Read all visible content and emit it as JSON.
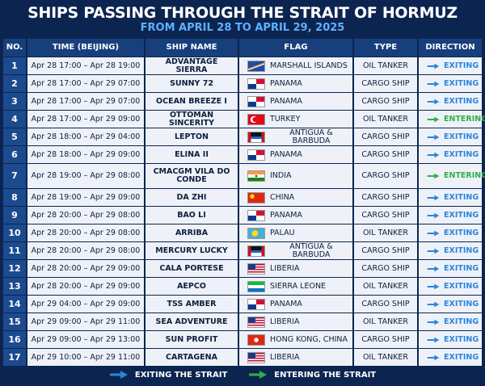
{
  "header": {
    "title": "SHIPS PASSING THROUGH THE STRAIT OF HORMUZ",
    "subtitle": "FROM APRIL 28 TO APRIL 29, 2025"
  },
  "table": {
    "columns": [
      "NO.",
      "TIME (BEIJING)",
      "SHIP NAME",
      "FLAG",
      "TYPE",
      "DIRECTION"
    ],
    "rows": [
      [
        1,
        "Apr 28 17:00 – Apr 28 19:00",
        "ADVANTAGE SIERRA",
        "MARSHALL ISLANDS",
        "OIL TANKER",
        "EXITING"
      ],
      [
        2,
        "Apr 28 17:00 – Apr 29 07:00",
        "SUNNY 72",
        "PANAMA",
        "CARGO SHIP",
        "EXITING"
      ],
      [
        3,
        "Apr 28 17:00 – Apr 29 07:00",
        "OCEAN BREEZE I",
        "PANAMA",
        "CARGO SHIP",
        "EXITING"
      ],
      [
        4,
        "Apr 28 17:00 – Apr 29 09:00",
        "OTTOMAN SINCERITY",
        "TURKEY",
        "OIL TANKER",
        "ENTERING"
      ],
      [
        5,
        "Apr 28 18:00 – Apr 29 04:00",
        "LEPTON",
        "ANTIGUA & BARBUDA",
        "CARGO SHIP",
        "EXITING"
      ],
      [
        6,
        "Apr 28 18:00 – Apr 29 09:00",
        "ELINA II",
        "PANAMA",
        "CARGO SHIP",
        "EXITING"
      ],
      [
        7,
        "Apr 28 19:00 – Apr 29 08:00",
        "CMACGM VILA DO CONDE",
        "INDIA",
        "CARGO SHIP",
        "ENTERING"
      ],
      [
        8,
        "Apr 28 19:00 – Apr 29 09:00",
        "DA ZHI",
        "CHINA",
        "CARGO SHIP",
        "EXITING"
      ],
      [
        9,
        "Apr 28 20:00 – Apr 29 08:00",
        "BAO LI",
        "PANAMA",
        "CARGO SHIP",
        "EXITING"
      ],
      [
        10,
        "Apr 28 20:00 – Apr 29 08:00",
        "ARRIBA",
        "PALAU",
        "OIL TANKER",
        "EXITING"
      ],
      [
        11,
        "Apr 28 20:00 – Apr 29 08:00",
        "MERCURY LUCKY",
        "ANTIGUA & BARBUDA",
        "CARGO SHIP",
        "EXITING"
      ],
      [
        12,
        "Apr 28 20:00 – Apr 29 09:00",
        "CALA PORTESE",
        "LIBERIA",
        "CARGO SHIP",
        "EXITING"
      ],
      [
        13,
        "Apr 28 20:00 – Apr 29 09:00",
        "AEPCO",
        "SIERRA LEONE",
        "OIL TANKER",
        "EXITING"
      ],
      [
        14,
        "Apr 29 04:00 – Apr 29 09:00",
        "TSS AMBER",
        "PANAMA",
        "CARGO SHIP",
        "EXITING"
      ],
      [
        15,
        "Apr 29 09:00 – Apr 29 11:00",
        "SEA ADVENTURE",
        "LIBERIA",
        "OIL TANKER",
        "EXITING"
      ],
      [
        16,
        "Apr 29 09:00 – Apr 29 13:00",
        "SUN PROFIT",
        "HONG KONG, CHINA",
        "CARGO SHIP",
        "EXITING"
      ],
      [
        17,
        "Apr 29 10:00 – Apr 29 11:00",
        "CARTAGENA",
        "LIBERIA",
        "OIL TANKER",
        "EXITING"
      ]
    ]
  },
  "legend": [
    {
      "label": "EXITING THE STRAIT",
      "color": "#2b86dc"
    },
    {
      "label": "ENTERING THE STRAIT",
      "color": "#2fae4a"
    }
  ]
}
